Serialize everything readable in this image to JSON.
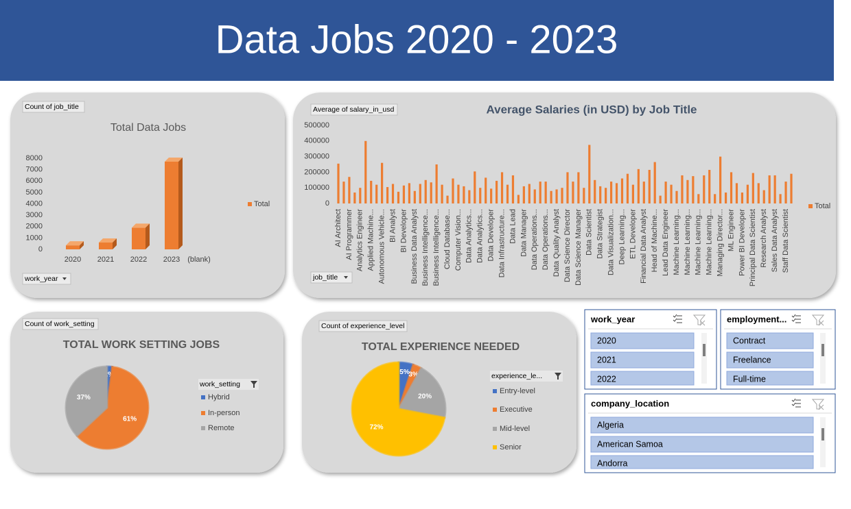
{
  "header": {
    "title": "Data Jobs 2020 - 2023"
  },
  "chart_data": [
    {
      "type": "bar3d",
      "title": "Total Data Jobs",
      "field_label": "Count of job_title",
      "filter_label": "work_year",
      "categories": [
        "2020",
        "2021",
        "2022",
        "2023",
        "(blank)"
      ],
      "series": [
        {
          "name": "Total",
          "color": "#ed7d31",
          "values": [
            350,
            600,
            1900,
            7700,
            null
          ]
        }
      ],
      "ylim": [
        0,
        8000
      ],
      "yticks": [
        0,
        1000,
        2000,
        3000,
        4000,
        5000,
        6000,
        7000,
        8000
      ]
    },
    {
      "type": "bar",
      "title": "Average Salaries (in USD) by Job Title",
      "field_label": "Average of salary_in_usd",
      "filter_label": "job_title",
      "categories": [
        "AI Architect",
        null,
        "AI Programmer",
        null,
        "Analytics Engineer",
        null,
        "Applied Machine...",
        null,
        "Autonomous Vehicle...",
        null,
        "BI Analyst",
        null,
        "BI Developer",
        null,
        "Business Data Analyst",
        null,
        "Business Intelligence...",
        null,
        "Business Intelligence...",
        null,
        "Cloud Database...",
        null,
        "Computer Vision...",
        null,
        "Data Analytics...",
        null,
        "Data Analytics...",
        null,
        "Data Developer",
        null,
        "Data Infrastructure...",
        null,
        "Data Lead",
        null,
        "Data Manager",
        null,
        "Data Operations...",
        null,
        "Data Operations...",
        null,
        "Data Quality Analyst",
        null,
        "Data Science Director",
        null,
        "Data Science Manager",
        null,
        "Data Scientist",
        null,
        "Data Strategist",
        null,
        "Data Visualization...",
        null,
        "Deep Learning...",
        null,
        "ETL Developer",
        null,
        "Financial Data Analyst",
        null,
        "Head of Machine...",
        null,
        "Lead Data Engineer",
        null,
        "Machine Learning...",
        null,
        "Machine Learning...",
        null,
        "Machine Learning...",
        null,
        "Machine Learning...",
        null,
        "Managing Director...",
        null,
        "ML Engineer",
        null,
        "Power BI Developer",
        null,
        "Principal Data Scientist",
        null,
        "Research Analyst",
        null,
        "Sales Data Analyst",
        null,
        "Staff Data Scientist",
        null
      ],
      "series": [
        {
          "name": "Total",
          "color": "#ed7d31",
          "values": [
            255000,
            140000,
            170000,
            70000,
            100000,
            400000,
            145000,
            120000,
            260000,
            105000,
            125000,
            75000,
            115000,
            130000,
            80000,
            125000,
            150000,
            135000,
            250000,
            120000,
            50000,
            160000,
            120000,
            110000,
            85000,
            205000,
            100000,
            165000,
            95000,
            145000,
            200000,
            120000,
            180000,
            55000,
            110000,
            125000,
            90000,
            140000,
            140000,
            80000,
            90000,
            100000,
            200000,
            140000,
            200000,
            100000,
            375000,
            150000,
            110000,
            100000,
            140000,
            130000,
            160000,
            190000,
            120000,
            220000,
            140000,
            215000,
            265000,
            50000,
            140000,
            120000,
            80000,
            180000,
            150000,
            175000,
            60000,
            180000,
            215000,
            60000,
            300000,
            70000,
            200000,
            130000,
            70000,
            120000,
            195000,
            130000,
            85000,
            180000,
            180000,
            60000,
            140000,
            190000
          ]
        }
      ],
      "ylim": [
        0,
        500000
      ],
      "yticks": [
        0,
        100000,
        200000,
        300000,
        400000,
        500000
      ]
    },
    {
      "type": "pie",
      "title": "TOTAL WORK SETTING JOBS",
      "field_label": "Count of work_setting",
      "legend_title": "work_setting",
      "categories": [
        "Hybrid",
        "In-person",
        "Remote"
      ],
      "values": [
        2,
        61,
        37
      ],
      "value_labels": [
        "2%",
        "61%",
        "37%"
      ],
      "colors": [
        "#4472c4",
        "#ed7d31",
        "#a5a5a5"
      ]
    },
    {
      "type": "pie",
      "title": "TOTAL EXPERIENCE NEEDED",
      "field_label": "Count of experience_level",
      "legend_title": "experience_le...",
      "categories": [
        "Entry-level",
        "Executive",
        "Mid-level",
        "Senior"
      ],
      "values": [
        5,
        3,
        20,
        72
      ],
      "value_labels": [
        "5%",
        "3%",
        "20%",
        "72%"
      ],
      "colors": [
        "#4472c4",
        "#ed7d31",
        "#a5a5a5",
        "#ffc000"
      ]
    }
  ],
  "slicers": [
    {
      "title": "work_year",
      "items": [
        "2020",
        "2021",
        "2022"
      ]
    },
    {
      "title": "employment...",
      "items": [
        "Contract",
        "Freelance",
        "Full-time"
      ]
    },
    {
      "title": "company_location",
      "items": [
        "Algeria",
        "American Samoa",
        "Andorra"
      ]
    }
  ]
}
